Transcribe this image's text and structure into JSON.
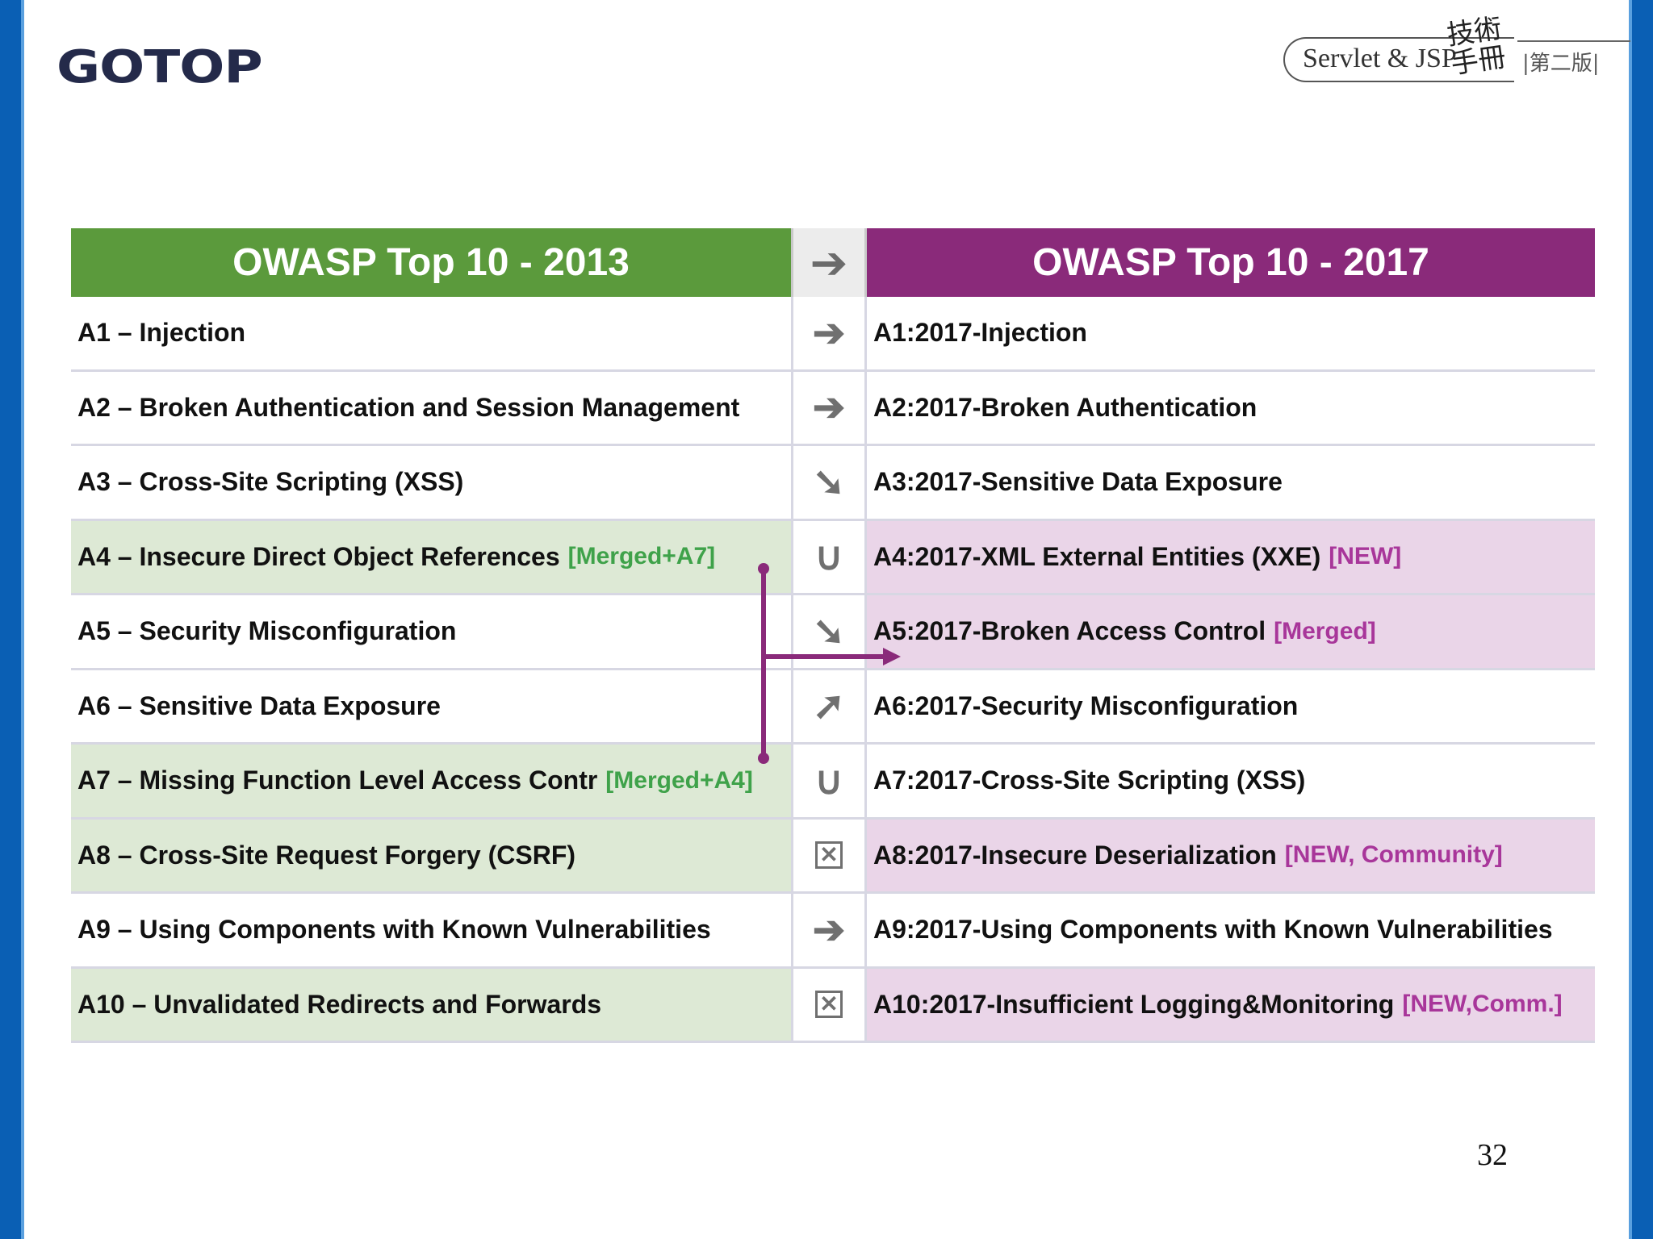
{
  "header": {
    "logo_text": "GOTOP",
    "book_title": "Servlet & JSP",
    "book_hanzi": "技術手冊",
    "book_edition": "|第二版|"
  },
  "table": {
    "left_header": "OWASP Top 10 - 2013",
    "mid_header": "➔",
    "right_header": "OWASP Top 10 - 2017",
    "rows": [
      {
        "left": "A1 – Injection",
        "left_tag": "",
        "mid": "➔",
        "right": "A1:2017-Injection",
        "right_tag": ""
      },
      {
        "left": "A2 – Broken Authentication and Session Management",
        "left_tag": "",
        "mid": "➔",
        "right": "A2:2017-Broken Authentication",
        "right_tag": ""
      },
      {
        "left": "A3 – Cross-Site Scripting (XSS)",
        "left_tag": "",
        "mid": "➘",
        "right": "A3:2017-Sensitive Data Exposure",
        "right_tag": ""
      },
      {
        "left": "A4 – Insecure Direct Object References",
        "left_tag": "[Merged+A7]",
        "mid": "∪",
        "right": "A4:2017-XML External Entities (XXE)",
        "right_tag": "[NEW]"
      },
      {
        "left": "A5 – Security Misconfiguration",
        "left_tag": "",
        "mid": "➘",
        "right": "A5:2017-Broken Access Control",
        "right_tag": "[Merged]"
      },
      {
        "left": "A6 – Sensitive Data Exposure",
        "left_tag": "",
        "mid": "➚",
        "right": "A6:2017-Security Misconfiguration",
        "right_tag": ""
      },
      {
        "left": "A7 – Missing Function Level Access Contr",
        "left_tag": "[Merged+A4]",
        "mid": "∪",
        "right": "A7:2017-Cross-Site Scripting (XSS)",
        "right_tag": ""
      },
      {
        "left": "A8 – Cross-Site Request Forgery (CSRF)",
        "left_tag": "",
        "mid": "✕",
        "right": "A8:2017-Insecure Deserialization",
        "right_tag": "[NEW, Community]"
      },
      {
        "left": "A9 – Using Components with Known Vulnerabilities",
        "left_tag": "",
        "mid": "➔",
        "right": "A9:2017-Using Components with Known Vulnerabilities",
        "right_tag": ""
      },
      {
        "left": "A10 – Unvalidated Redirects and Forwards",
        "left_tag": "",
        "mid": "✕",
        "right": "A10:2017-Insufficient Logging&Monitoring",
        "right_tag": "[NEW,Comm.]"
      }
    ]
  },
  "page_number": "32",
  "colors": {
    "green_header": "#5b9a3c",
    "purple_header": "#8a2a7a",
    "green_highlight": "#dde9d5",
    "purple_highlight": "#ead5e8",
    "merge_line": "#8a2a7a"
  }
}
